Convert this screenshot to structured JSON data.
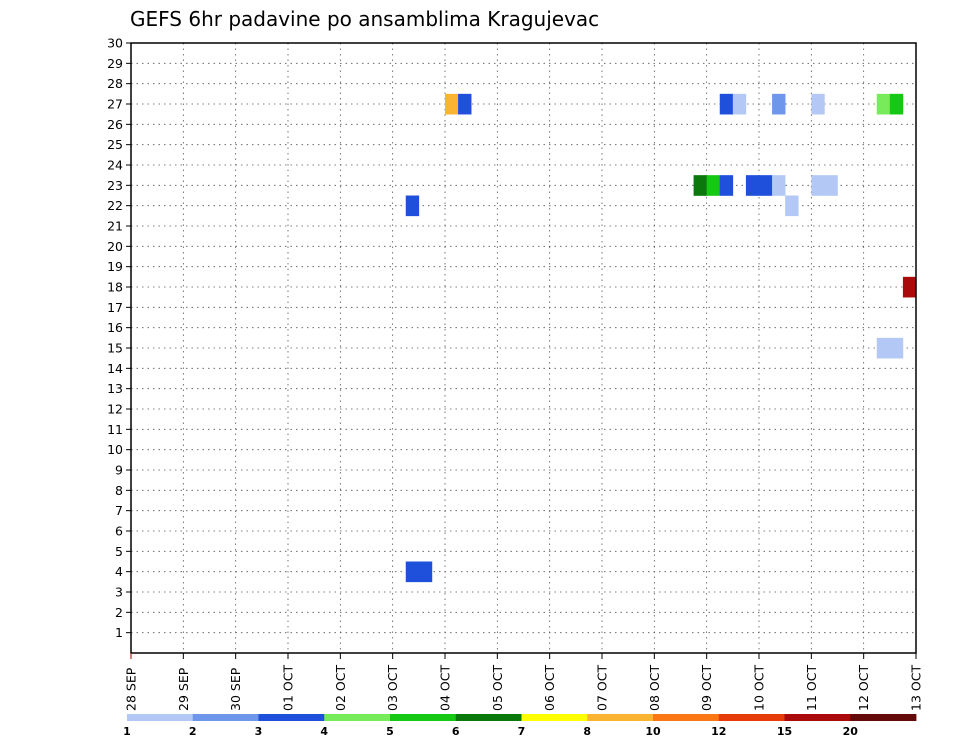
{
  "chart_data": {
    "type": "heatmap",
    "title": "GEFS 6hr padavine po ansamblima Kragujevac",
    "xlabel": "",
    "ylabel": "",
    "x_tick_labels": [
      "28 SEP",
      "29 SEP",
      "30 SEP",
      "01 OCT",
      "02 OCT",
      "03 OCT",
      "04 OCT",
      "05 OCT",
      "06 OCT",
      "07 OCT",
      "08 OCT",
      "09 OCT",
      "10 OCT",
      "11 OCT",
      "12 OCT",
      "13 OCT"
    ],
    "y_ticks": [
      1,
      2,
      3,
      4,
      5,
      6,
      7,
      8,
      9,
      10,
      11,
      12,
      13,
      14,
      15,
      16,
      17,
      18,
      19,
      20,
      21,
      22,
      23,
      24,
      25,
      26,
      27,
      28,
      29,
      30
    ],
    "x_range_days": [
      0,
      15
    ],
    "y_range": [
      0,
      30
    ],
    "grid": true,
    "colorbar": {
      "labels": [
        "1",
        "2",
        "3",
        "4",
        "5",
        "6",
        "7",
        "8",
        "10",
        "12",
        "15",
        "20"
      ],
      "colors": [
        "#b4c8f5",
        "#6e96eb",
        "#1e50dc",
        "#78eb5a",
        "#14c814",
        "#0a780a",
        "#ffff00",
        "#fab432",
        "#fa7814",
        "#e63c0a",
        "#aa0a0a",
        "#640a0a"
      ]
    },
    "cells": [
      {
        "member": 27,
        "day": 6.0,
        "color": "#fab432"
      },
      {
        "member": 27,
        "day": 6.25,
        "color": "#1e50dc"
      },
      {
        "member": 27,
        "day": 11.25,
        "color": "#1e50dc"
      },
      {
        "member": 27,
        "day": 11.5,
        "color": "#b4c8f5"
      },
      {
        "member": 27,
        "day": 12.25,
        "color": "#6e96eb"
      },
      {
        "member": 27,
        "day": 13.0,
        "color": "#b4c8f5"
      },
      {
        "member": 27,
        "day": 14.25,
        "color": "#78eb5a"
      },
      {
        "member": 27,
        "day": 14.5,
        "color": "#14c814"
      },
      {
        "member": 23,
        "day": 10.75,
        "color": "#0a780a"
      },
      {
        "member": 23,
        "day": 11.0,
        "color": "#14c814"
      },
      {
        "member": 23,
        "day": 11.25,
        "color": "#1e50dc"
      },
      {
        "member": 23,
        "day": 11.75,
        "color": "#1e50dc"
      },
      {
        "member": 23,
        "day": 12.0,
        "color": "#1e50dc"
      },
      {
        "member": 23,
        "day": 12.25,
        "color": "#b4c8f5"
      },
      {
        "member": 23,
        "day": 13.0,
        "color": "#b4c8f5"
      },
      {
        "member": 23,
        "day": 13.25,
        "color": "#b4c8f5"
      },
      {
        "member": 22,
        "day": 5.25,
        "color": "#1e50dc"
      },
      {
        "member": 22,
        "day": 12.5,
        "color": "#b4c8f5"
      },
      {
        "member": 18,
        "day": 14.75,
        "color": "#aa0a0a"
      },
      {
        "member": 15,
        "day": 14.25,
        "color": "#b4c8f5"
      },
      {
        "member": 15,
        "day": 14.5,
        "color": "#b4c8f5"
      },
      {
        "member": 4,
        "day": 5.25,
        "color": "#1e50dc"
      },
      {
        "member": 4,
        "day": 5.5,
        "color": "#1e50dc"
      }
    ]
  }
}
